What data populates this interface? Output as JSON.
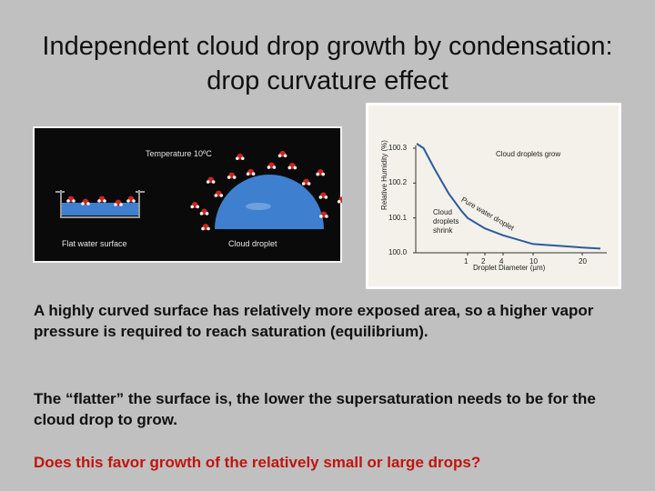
{
  "title": "Independent cloud drop growth by condensation: drop curvature effect",
  "left_figure": {
    "temperature_label": "Temperature 10ºC",
    "flat_label": "Flat water surface",
    "droplet_label": "Cloud droplet",
    "colors": {
      "water": "#3e7fd0",
      "molecule_red": "#c8281e",
      "molecule_white": "#f2f2f2"
    }
  },
  "chart_data": {
    "type": "line",
    "title": "",
    "xlabel": "Droplet Diameter (µm)",
    "ylabel": "Relative Humidity (%)",
    "x_ticks": [
      "1",
      "2",
      "4",
      "10",
      "20"
    ],
    "y_ticks": [
      "100.0",
      "100.1",
      "100.2",
      "100.3"
    ],
    "ylim": [
      100.0,
      100.3
    ],
    "series": [
      {
        "x": [
          0.15,
          0.2,
          0.3,
          0.5,
          0.8,
          1,
          2,
          4,
          10,
          20,
          25
        ],
        "y": [
          100.32,
          100.3,
          100.24,
          100.17,
          100.12,
          100.1,
          100.07,
          100.05,
          100.025,
          100.015,
          100.012
        ]
      }
    ],
    "annotations": {
      "grow": "Cloud droplets grow",
      "curve": "Pure water droplet",
      "shrink": "Cloud droplets shrink"
    },
    "line_color": "#2c5aa0",
    "grid": false
  },
  "paragraph1": "A highly curved surface has relatively more exposed area, so a higher vapor pressure is required to reach saturation (equilibrium).",
  "paragraph2": "The “flatter” the surface is, the lower the supersaturation needs to be for the cloud drop to grow.",
  "question": "Does this favor growth of the relatively small or large drops?"
}
